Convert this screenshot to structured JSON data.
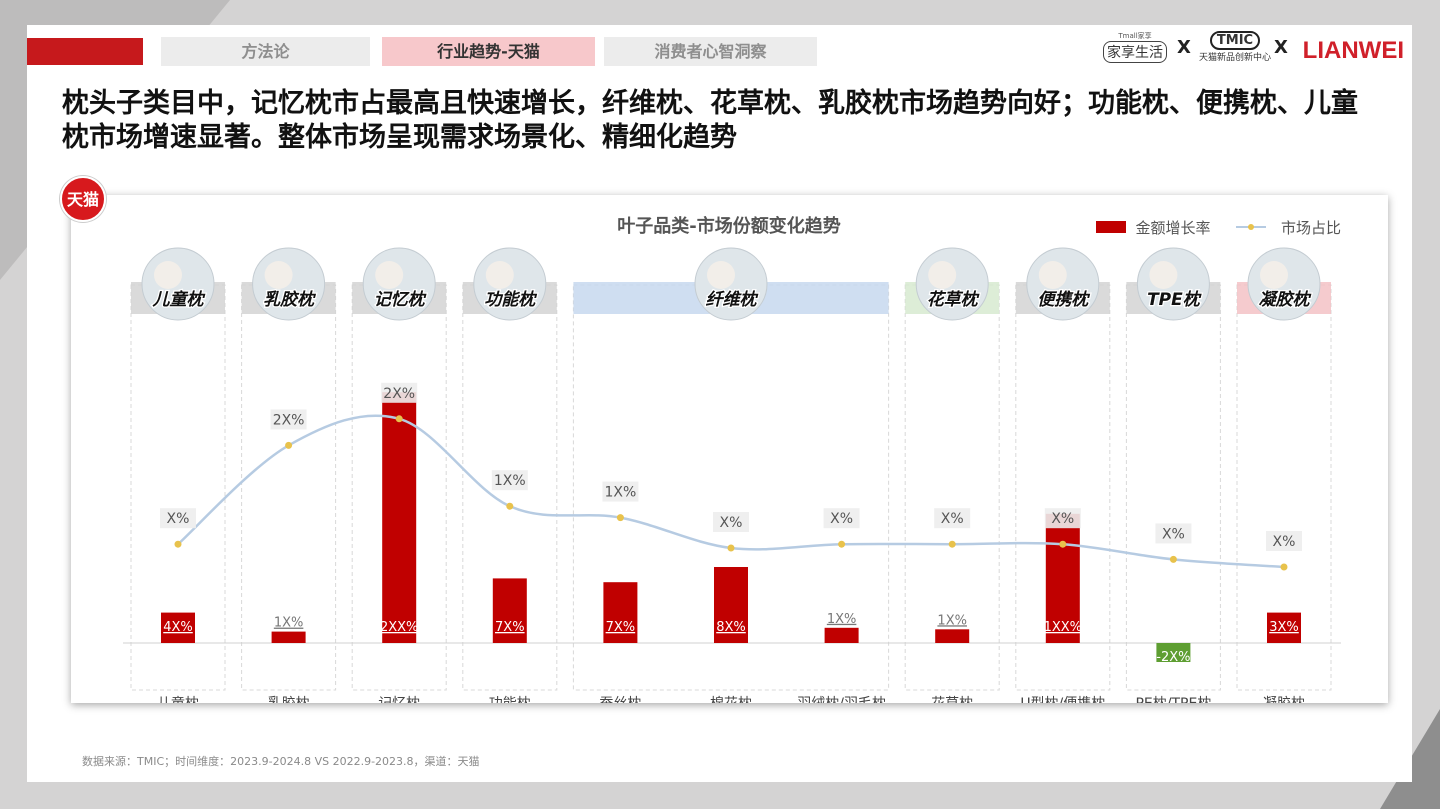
{
  "nav": {
    "tabs": [
      {
        "label": "方法论",
        "active": false
      },
      {
        "label": "行业趋势-天猫",
        "active": true
      },
      {
        "label": "消费者心智洞察",
        "active": false
      }
    ]
  },
  "logos": {
    "first_small": "Tmall家享",
    "first_main": "家享生活",
    "x1": "X",
    "tmic": "TMIC",
    "tmic_sub": "天猫新品创新中心",
    "x2": "X",
    "brand": "LIANWEI"
  },
  "headline": "枕头子类目中，记忆枕市占最高且快速增长，纤维枕、花草枕、乳胶枕市场趋势向好；功能枕、便携枕、儿童枕市场增速显著。整体市场呈现需求场景化、精细化趋势",
  "badge": "天猫",
  "source": "数据来源：TMIC；时间维度：2023.9-2024.8 VS 2022.9-2023.8，渠道：天猫",
  "colors": {
    "bar": "#c00000",
    "bar_negative": "#5e9e32",
    "line": "#b6cbe2",
    "marker": "#e8c24c"
  },
  "chart_data": {
    "type": "bar",
    "title": "叶子品类-市场份额变化趋势",
    "legend": [
      "金额增长率",
      "市场占比"
    ],
    "legend_position": "top-right",
    "categories": [
      "儿童枕",
      "乳胶枕",
      "记忆枕",
      "功能枕",
      "蚕丝枕",
      "棉花枕",
      "羽绒枕/羽毛枕",
      "花草枕",
      "U型枕/便携枕",
      "PE枕/TPE枕",
      "凝胶枕"
    ],
    "groups": [
      {
        "label": "儿童枕",
        "color": "#d4d4d4",
        "from": 0,
        "to": 0
      },
      {
        "label": "乳胶枕",
        "color": "#d4d4d4",
        "from": 1,
        "to": 1
      },
      {
        "label": "记忆枕",
        "color": "#d4d4d4",
        "from": 2,
        "to": 2
      },
      {
        "label": "功能枕",
        "color": "#d4d4d4",
        "from": 3,
        "to": 3
      },
      {
        "label": "纤维枕",
        "color": "#c7d8ee",
        "from": 4,
        "to": 6
      },
      {
        "label": "花草枕",
        "color": "#d7ead0",
        "from": 7,
        "to": 7
      },
      {
        "label": "便携枕",
        "color": "#d4d4d4",
        "from": 8,
        "to": 8
      },
      {
        "label": "TPE枕",
        "color": "#d4d4d4",
        "from": 9,
        "to": 9
      },
      {
        "label": "凝胶枕",
        "color": "#f3c2c6",
        "from": 10,
        "to": 10
      }
    ],
    "series": [
      {
        "name": "金额增长率",
        "type": "bar",
        "values": [
          4,
          1.5,
          33,
          8.5,
          8,
          10,
          2,
          1.8,
          17,
          -2.5,
          4
        ],
        "labels": [
          "4X%",
          "1X%",
          "2XX%",
          "7X%",
          "7X%",
          "8X%",
          "1X%",
          "1X%",
          "1XX%",
          "-2X%",
          "3X%"
        ]
      },
      {
        "name": "市场占比",
        "type": "line",
        "values": [
          13,
          26,
          29.5,
          18,
          16.5,
          12.5,
          13,
          13,
          13,
          11,
          10
        ],
        "labels": [
          "X%",
          "2X%",
          "2X%",
          "1X%",
          "1X%",
          "X%",
          "X%",
          "X%",
          "X%",
          "X%",
          "X%"
        ]
      }
    ]
  }
}
